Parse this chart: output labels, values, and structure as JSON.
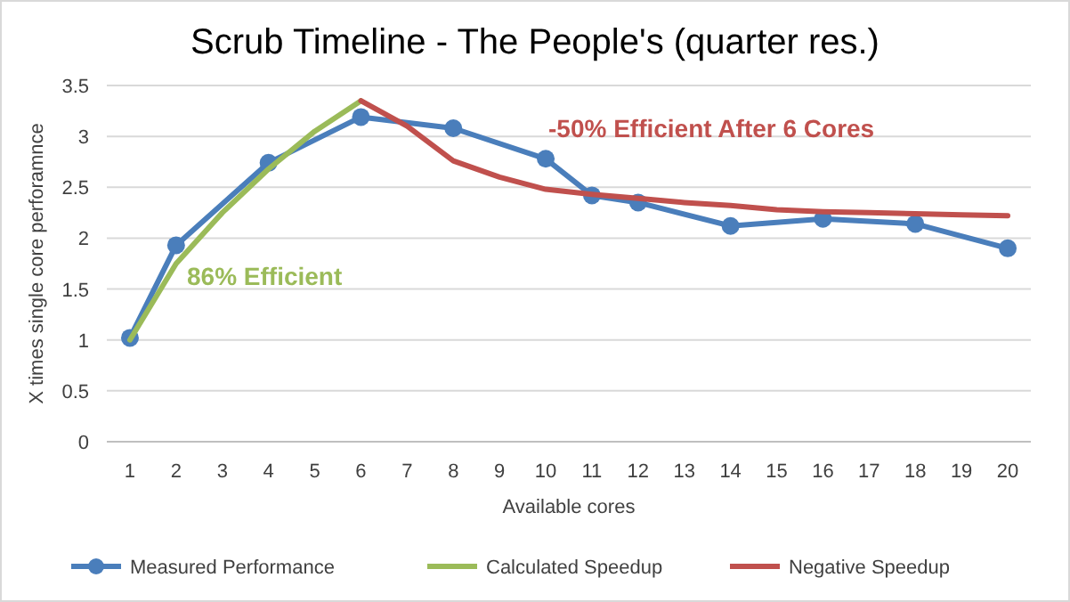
{
  "chart_data": {
    "type": "line",
    "title": "Scrub Timeline - The People's (quarter res.)",
    "xlabel": "Available cores",
    "ylabel": "X times single core perforamnce",
    "xlim": [
      0.5,
      20.5
    ],
    "xticks": [
      1,
      2,
      3,
      4,
      5,
      6,
      7,
      8,
      9,
      10,
      11,
      12,
      13,
      14,
      15,
      16,
      17,
      18,
      19,
      20
    ],
    "ylim": [
      0,
      3.5
    ],
    "yticks": [
      0,
      0.5,
      1,
      1.5,
      2,
      2.5,
      3,
      3.5
    ],
    "grid": "y",
    "legend": "bottom",
    "annotations": [
      "86% Efficient",
      "-50% Efficient After 6 Cores"
    ],
    "series": [
      {
        "name": "Measured Performance",
        "color": "#4a7ebb",
        "marker": "circle",
        "x": [
          1,
          2,
          4,
          6,
          8,
          10,
          11,
          12,
          14,
          16,
          18,
          20
        ],
        "values": [
          1.02,
          1.93,
          2.74,
          3.19,
          3.08,
          2.78,
          2.42,
          2.35,
          2.12,
          2.19,
          2.14,
          1.9
        ]
      },
      {
        "name": "Calculated Speedup",
        "color": "#9bbb59",
        "marker": "none",
        "x": [
          1,
          2,
          3,
          4,
          5,
          6
        ],
        "values": [
          1.0,
          1.75,
          2.25,
          2.68,
          3.05,
          3.35
        ]
      },
      {
        "name": "Negative Speedup",
        "color": "#c0504d",
        "marker": "none",
        "x": [
          6,
          7,
          8,
          9,
          10,
          11,
          12,
          13,
          14,
          15,
          16,
          17,
          18,
          19,
          20
        ],
        "values": [
          3.35,
          3.1,
          2.76,
          2.6,
          2.48,
          2.43,
          2.39,
          2.35,
          2.32,
          2.28,
          2.26,
          2.25,
          2.24,
          2.23,
          2.22
        ]
      }
    ]
  }
}
